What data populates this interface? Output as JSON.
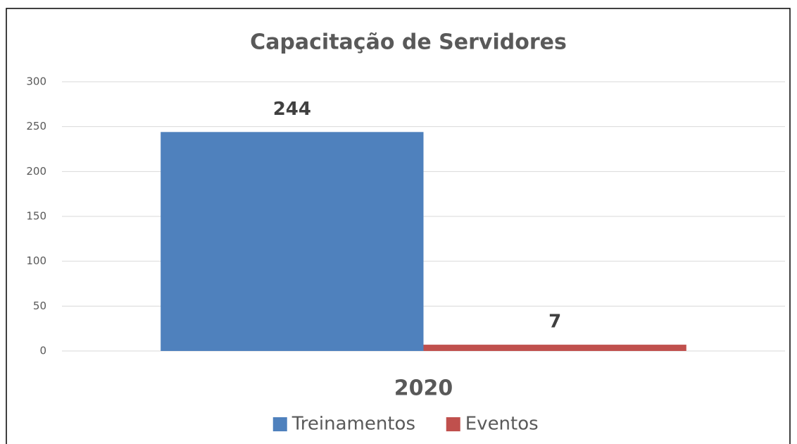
{
  "chart_data": {
    "type": "bar",
    "title": "Capacitação de Servidores",
    "categories": [
      "2020"
    ],
    "series": [
      {
        "name": "Treinamentos",
        "color": "#4f81bd",
        "values": [
          244
        ]
      },
      {
        "name": "Eventos",
        "color": "#c0504d",
        "values": [
          7
        ]
      }
    ],
    "ylim": [
      0,
      300
    ],
    "yticks": [
      0,
      50,
      100,
      150,
      200,
      250,
      300
    ],
    "grid": true,
    "legend": "bottom"
  }
}
